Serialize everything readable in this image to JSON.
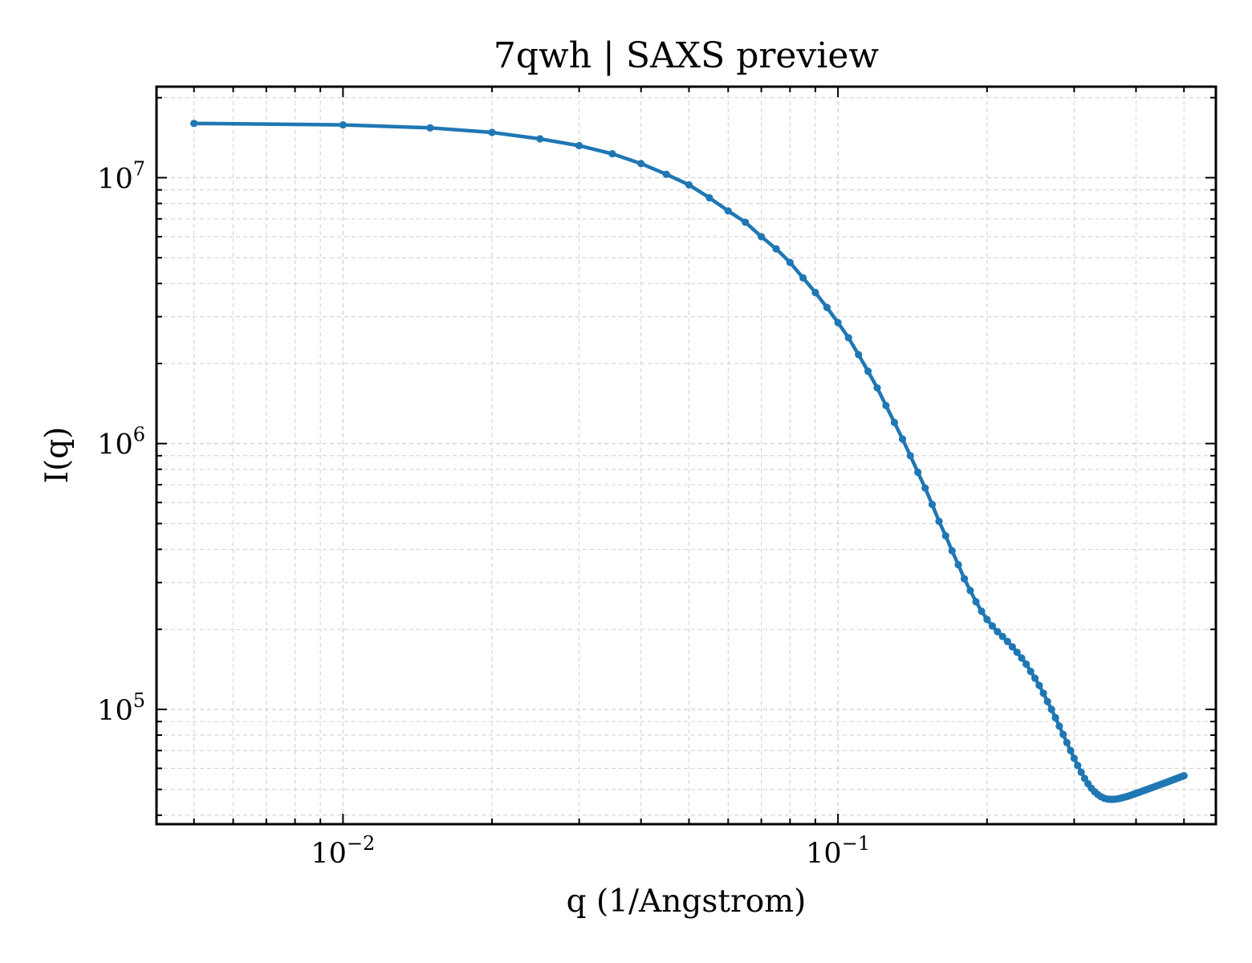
{
  "chart_data": {
    "type": "line",
    "title": "7qwh | SAXS preview",
    "xlabel": "q (1/Angstrom)",
    "ylabel": "I(q)",
    "x_scale": "log",
    "y_scale": "log",
    "xlim": [
      0.0042,
      0.58
    ],
    "ylim": [
      37000,
      22000000
    ],
    "grid": true,
    "x_ticks": [
      {
        "value": 0.01,
        "base": "10",
        "exp": "−2"
      },
      {
        "value": 0.1,
        "base": "10",
        "exp": "−1"
      }
    ],
    "y_ticks": [
      {
        "value": 100000,
        "base": "10",
        "exp": "5"
      },
      {
        "value": 1000000,
        "base": "10",
        "exp": "6"
      },
      {
        "value": 10000000,
        "base": "10",
        "exp": "7"
      }
    ],
    "series": [
      {
        "color": "#1f77b4",
        "x": [
          0.005,
          0.01,
          0.015,
          0.02,
          0.025,
          0.03,
          0.035,
          0.04,
          0.045,
          0.05,
          0.055,
          0.06,
          0.065,
          0.07,
          0.075,
          0.08,
          0.085,
          0.09,
          0.095,
          0.1,
          0.105,
          0.11,
          0.115,
          0.12,
          0.125,
          0.13,
          0.135,
          0.14,
          0.145,
          0.15,
          0.155,
          0.16,
          0.165,
          0.17,
          0.175,
          0.18,
          0.185,
          0.19,
          0.195,
          0.2,
          0.205,
          0.21,
          0.215,
          0.22,
          0.225,
          0.23,
          0.235,
          0.24,
          0.245,
          0.25,
          0.255,
          0.26,
          0.265,
          0.27,
          0.275,
          0.28,
          0.285,
          0.29,
          0.295,
          0.3,
          0.305,
          0.31,
          0.315,
          0.32,
          0.325,
          0.33,
          0.335,
          0.34,
          0.345,
          0.35,
          0.355,
          0.36,
          0.365,
          0.37,
          0.375,
          0.38,
          0.385,
          0.39,
          0.395,
          0.4,
          0.405,
          0.41,
          0.415,
          0.42,
          0.425,
          0.43,
          0.435,
          0.44,
          0.445,
          0.45,
          0.455,
          0.46,
          0.465,
          0.47,
          0.475,
          0.48,
          0.485,
          0.49,
          0.495,
          0.5
        ],
        "y": [
          16000000,
          15800000,
          15400000,
          14800000,
          14000000,
          13200000,
          12300000,
          11300000,
          10300000,
          9400000,
          8400000,
          7500000,
          6800000,
          6000000,
          5400000,
          4800000,
          4200000,
          3700000,
          3250000,
          2850000,
          2500000,
          2160000,
          1870000,
          1620000,
          1390000,
          1200000,
          1040000,
          900000,
          780000,
          680000,
          590000,
          510000,
          450000,
          395000,
          350000,
          310000,
          280000,
          254000,
          234000,
          218000,
          206000,
          196000,
          188000,
          180000,
          172000,
          164000,
          156000,
          148000,
          139000,
          131000,
          123000,
          115000,
          107000,
          100000,
          93000,
          86500,
          80500,
          75000,
          70000,
          65500,
          61500,
          58000,
          55000,
          52500,
          50500,
          49000,
          47800,
          46900,
          46300,
          46000,
          45900,
          45900,
          46000,
          46200,
          46500,
          46800,
          47100,
          47500,
          47900,
          48300,
          48700,
          49100,
          49500,
          49900,
          50300,
          50700,
          51100,
          51500,
          51900,
          52300,
          52700,
          53100,
          53500,
          53900,
          54300,
          54700,
          55100,
          55500,
          55900,
          56300
        ]
      }
    ]
  }
}
